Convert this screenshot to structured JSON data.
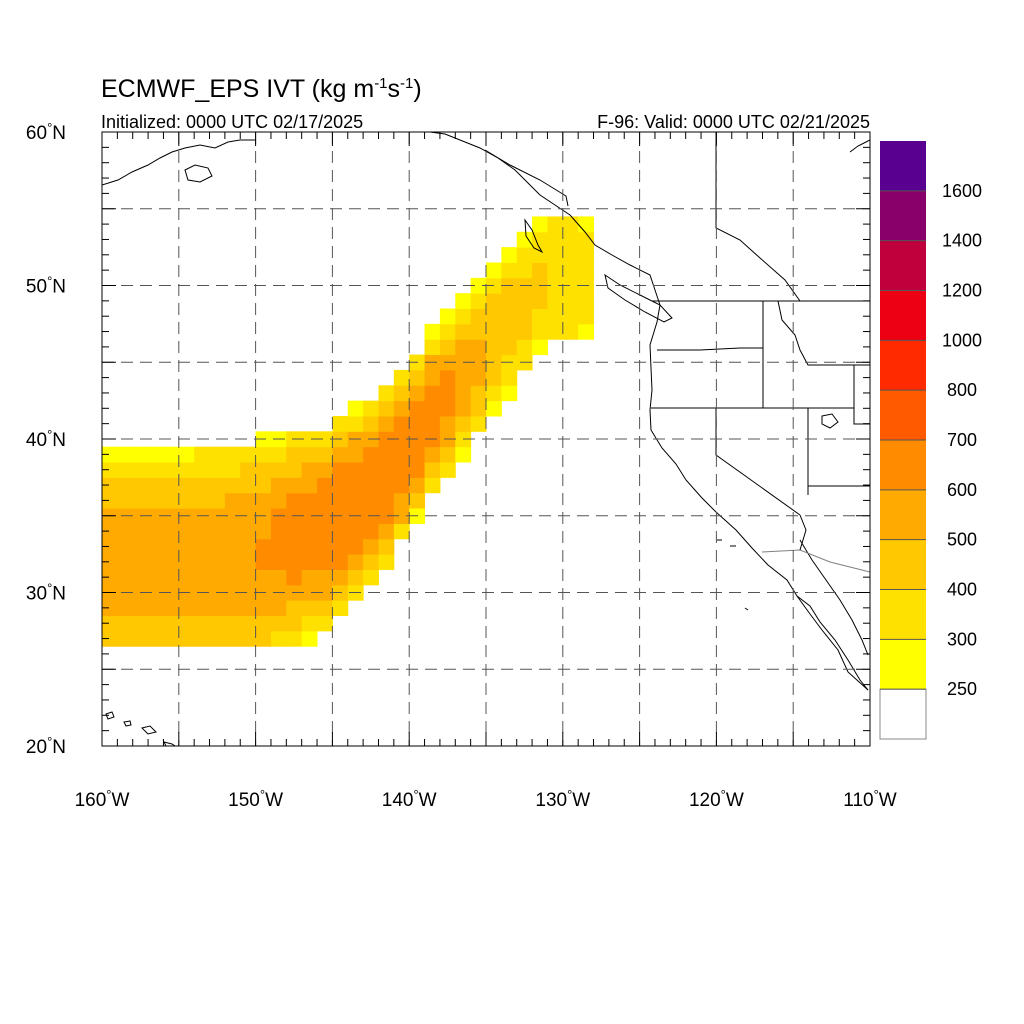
{
  "title": {
    "model": "ECMWF_EPS IVT (kg m",
    "exp1": "-1",
    "mid": "s",
    "exp2": "-1",
    "close": ")"
  },
  "initialized_text": "Initialized: 0000 UTC 02/17/2025",
  "valid_text": "F-96: Valid: 0000 UTC 02/21/2025",
  "map": {
    "projection": "cylindrical equidistant",
    "lon_range": [
      -160,
      -110
    ],
    "lat_range": [
      20,
      60
    ],
    "grid": "dashed every 5 degrees",
    "lat_ticks": [
      {
        "value": 60,
        "label": "60°N"
      },
      {
        "value": 50,
        "label": "50°N"
      },
      {
        "value": 40,
        "label": "40°N"
      },
      {
        "value": 30,
        "label": "30°N"
      },
      {
        "value": 20,
        "label": "20°N"
      }
    ],
    "lon_ticks": [
      {
        "value": -160,
        "label": "160°W"
      },
      {
        "value": -150,
        "label": "150°W"
      },
      {
        "value": -140,
        "label": "140°W"
      },
      {
        "value": -130,
        "label": "130°W"
      },
      {
        "value": -120,
        "label": "120°W"
      },
      {
        "value": -110,
        "label": "110°W"
      }
    ]
  },
  "colorbar": {
    "levels": [
      250,
      300,
      400,
      500,
      600,
      700,
      800,
      1000,
      1200,
      1400,
      1600
    ],
    "labels": [
      "250",
      "300",
      "400",
      "500",
      "600",
      "700",
      "800",
      "1000",
      "1200",
      "1400",
      "1600"
    ],
    "colors": [
      "#ffffff",
      "#ffff00",
      "#ffe100",
      "#ffc800",
      "#ffaa00",
      "#ff8c00",
      "#ff5a00",
      "#ff2a00",
      "#ee0014",
      "#c0003c",
      "#8a006a",
      "#5a0090"
    ]
  },
  "chart_data": {
    "type": "heatmap",
    "variable": "IVT",
    "units": "kg m-1 s-1",
    "approx_plume_axis": [
      {
        "lon": -160,
        "lat": 32.0,
        "peak_ivt": 550
      },
      {
        "lon": -155,
        "lat": 32.0,
        "peak_ivt": 550
      },
      {
        "lon": -150,
        "lat": 32.5,
        "peak_ivt": 600
      },
      {
        "lon": -145,
        "lat": 34.5,
        "peak_ivt": 700
      },
      {
        "lon": -141,
        "lat": 38.0,
        "peak_ivt": 700
      },
      {
        "lon": -139,
        "lat": 41.0,
        "peak_ivt": 700
      },
      {
        "lon": -135,
        "lat": 46.0,
        "peak_ivt": 500
      },
      {
        "lon": -131,
        "lat": 50.5,
        "peak_ivt": 400
      }
    ],
    "approx_plume_extent": {
      "lon": [
        -160,
        -128
      ],
      "lat": [
        26.5,
        55.5
      ]
    },
    "max_ivt_bin": "700-800"
  }
}
